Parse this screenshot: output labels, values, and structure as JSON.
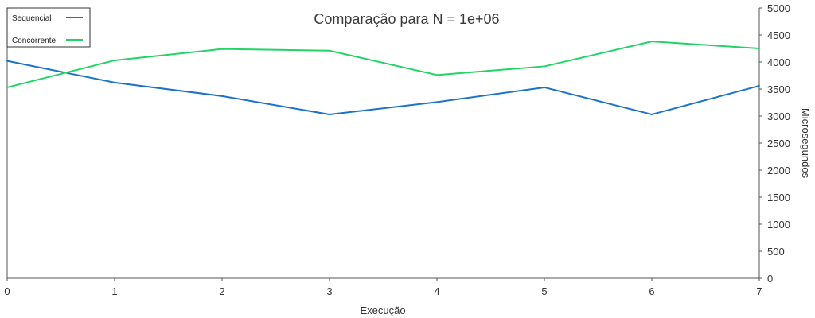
{
  "chart_data": {
    "type": "line",
    "title": "Comparação para N = 1e+06",
    "xlabel": "Execução",
    "ylabel": "Microsegundos",
    "x": [
      0,
      1,
      2,
      3,
      4,
      5,
      6,
      7
    ],
    "xlim": [
      0,
      7
    ],
    "ylim": [
      0,
      5000
    ],
    "x_ticks": [
      "0",
      "1",
      "2",
      "3",
      "4",
      "5",
      "6",
      "7"
    ],
    "y_ticks": [
      "0",
      "500",
      "1000",
      "1500",
      "2000",
      "2500",
      "3000",
      "3500",
      "4000",
      "4500",
      "5000"
    ],
    "y_axis_position": "right",
    "grid": false,
    "legend_position": "top-left",
    "series": [
      {
        "name": "Sequencial",
        "color": "#1a73c9",
        "values": [
          4020,
          3620,
          3370,
          3030,
          3260,
          3530,
          3030,
          3560
        ]
      },
      {
        "name": "Concorrente",
        "color": "#22d468",
        "values": [
          3530,
          4030,
          4240,
          4210,
          3760,
          3920,
          4380,
          4250
        ]
      }
    ]
  }
}
